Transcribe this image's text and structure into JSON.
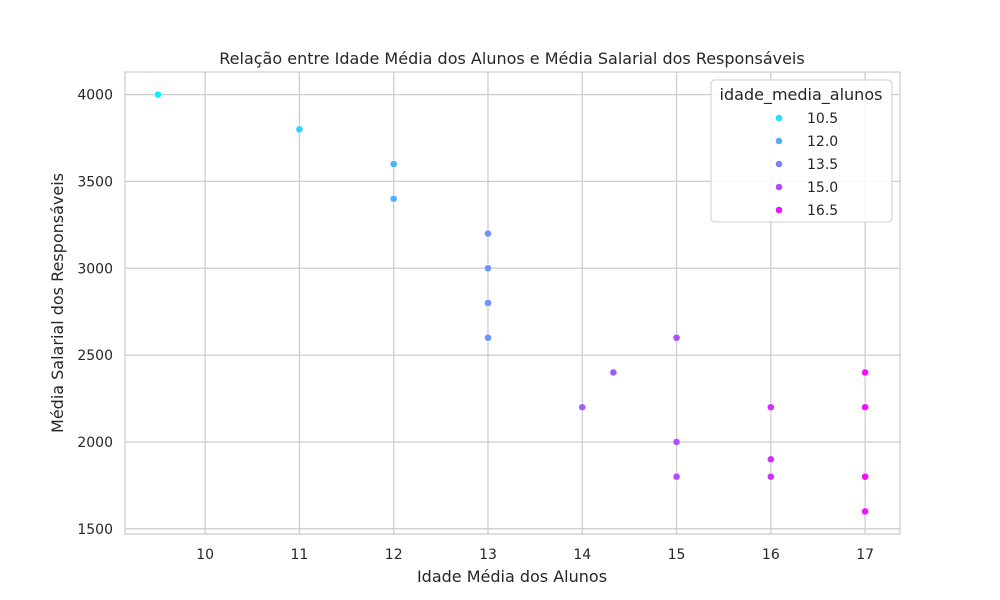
{
  "chart_data": {
    "type": "scatter",
    "title": "Relação entre Idade Média dos Alunos e Média Salarial dos Responsáveis",
    "xlabel": "Idade Média dos Alunos",
    "ylabel": "Média Salarial dos Responsáveis",
    "xlim": [
      9.15,
      17.37
    ],
    "ylim": [
      1470,
      4130
    ],
    "x_ticks": [
      10,
      11,
      12,
      13,
      14,
      15,
      16,
      17
    ],
    "x_tick_labels": [
      "10",
      "11",
      "12",
      "13",
      "14",
      "15",
      "16",
      "17"
    ],
    "y_ticks": [
      1500,
      2000,
      2500,
      3000,
      3500,
      4000
    ],
    "y_tick_labels": [
      "1500",
      "2000",
      "2500",
      "3000",
      "3500",
      "4000"
    ],
    "grid": true,
    "legend": {
      "title": "idade_media_alunos",
      "placement": "top-right",
      "entries": [
        {
          "label": "10.5",
          "color": "#1ee1ff"
        },
        {
          "label": "12.0",
          "color": "#4fb0ff"
        },
        {
          "label": "13.5",
          "color": "#7f80ff"
        },
        {
          "label": "15.0",
          "color": "#b44bff"
        },
        {
          "label": "16.5",
          "color": "#ec13ff"
        }
      ]
    },
    "points": [
      {
        "x": 9.5,
        "y": 4000,
        "color": "#0ff0ff"
      },
      {
        "x": 11,
        "y": 3800,
        "color": "#2ed1ff"
      },
      {
        "x": 12,
        "y": 3600,
        "color": "#4fb0ff"
      },
      {
        "x": 12,
        "y": 3400,
        "color": "#4fb0ff"
      },
      {
        "x": 13,
        "y": 3200,
        "color": "#6c93ff"
      },
      {
        "x": 13,
        "y": 3000,
        "color": "#6c93ff"
      },
      {
        "x": 13,
        "y": 2800,
        "color": "#6c93ff"
      },
      {
        "x": 13,
        "y": 2600,
        "color": "#6c93ff"
      },
      {
        "x": 14,
        "y": 2200,
        "color": "#9466ff"
      },
      {
        "x": 14.33,
        "y": 2400,
        "color": "#9a5fff"
      },
      {
        "x": 15,
        "y": 2600,
        "color": "#b44bff"
      },
      {
        "x": 15,
        "y": 2000,
        "color": "#b44bff"
      },
      {
        "x": 15,
        "y": 1800,
        "color": "#b44bff"
      },
      {
        "x": 16,
        "y": 2200,
        "color": "#d02fff"
      },
      {
        "x": 16,
        "y": 1900,
        "color": "#d02fff"
      },
      {
        "x": 16,
        "y": 1800,
        "color": "#d02fff"
      },
      {
        "x": 17,
        "y": 2400,
        "color": "#f00fff"
      },
      {
        "x": 17,
        "y": 2200,
        "color": "#f00fff"
      },
      {
        "x": 17,
        "y": 1800,
        "color": "#f00fff"
      },
      {
        "x": 17,
        "y": 1600,
        "color": "#f00fff"
      }
    ]
  }
}
